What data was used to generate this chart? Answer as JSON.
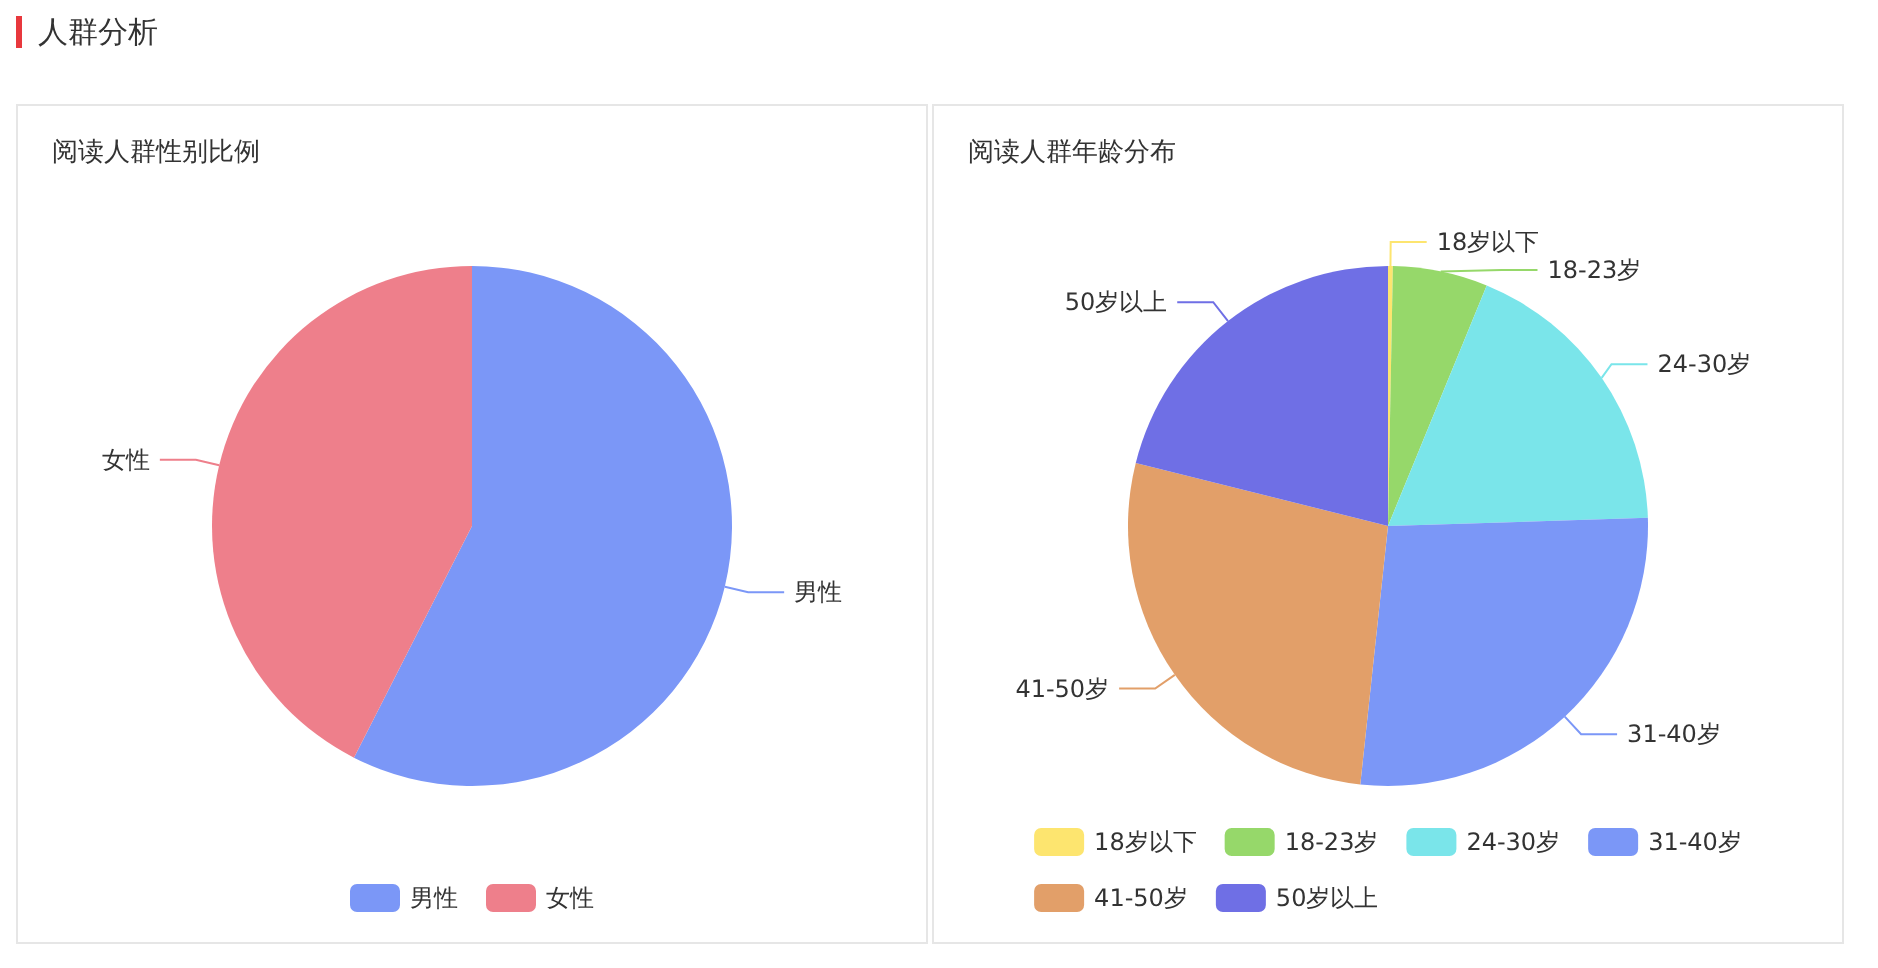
{
  "chart_data": [
    {
      "type": "pie",
      "title": "阅读人群性别比例",
      "annotations": [
        "人群分析"
      ],
      "categories": [
        "男性",
        "女性"
      ],
      "values": [
        57.5,
        42.5
      ],
      "colors": [
        "#7b97f7",
        "#ee7f8b"
      ],
      "legend": "bottom"
    },
    {
      "type": "pie",
      "title": "阅读人群年龄分布",
      "categories": [
        "18岁以下",
        "18-23岁",
        "24-30岁",
        "31-40岁",
        "41-50岁",
        "50岁以上"
      ],
      "values": [
        0.3,
        5.9,
        18.3,
        27.2,
        27.2,
        21.1
      ],
      "colors": [
        "#fde56f",
        "#96d86a",
        "#7ae5ea",
        "#7b97f7",
        "#e29f69",
        "#6f6fe5"
      ],
      "legend": "bottom"
    }
  ]
}
